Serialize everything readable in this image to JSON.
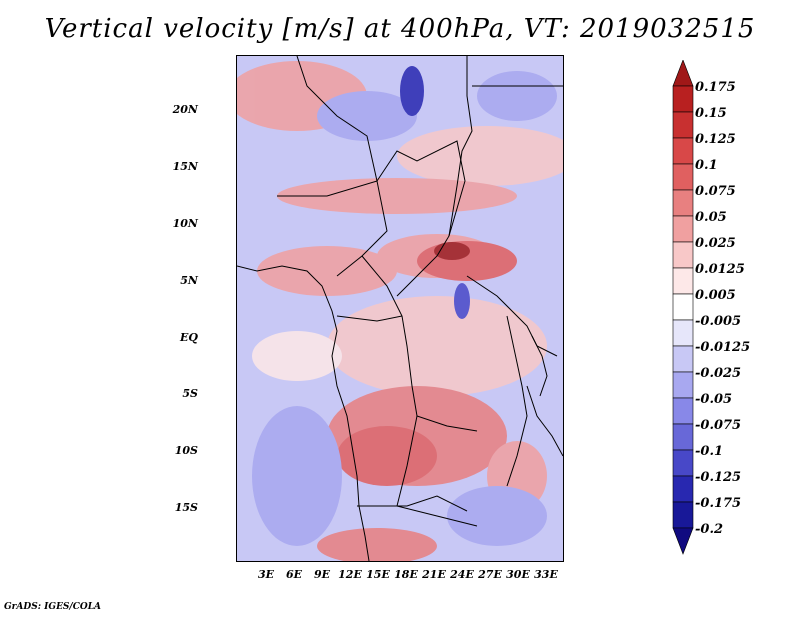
{
  "title": "Vertical velocity [m/s] at 400hPa, VT: 2019032515",
  "footer": "GrADS: IGES/COLA",
  "lat_ticks": [
    "20N",
    "15N",
    "10N",
    "5N",
    "EQ",
    "5S",
    "10S",
    "15S"
  ],
  "lon_ticks": [
    "3E",
    "6E",
    "9E",
    "12E",
    "15E",
    "18E",
    "21E",
    "24E",
    "27E",
    "30E",
    "33E"
  ],
  "colorbar": {
    "labels": [
      "0.175",
      "0.15",
      "0.125",
      "0.1",
      "0.075",
      "0.05",
      "0.025",
      "0.0125",
      "0.005",
      "-0.005",
      "-0.0125",
      "-0.025",
      "-0.05",
      "-0.075",
      "-0.1",
      "-0.125",
      "-0.175",
      "-0.2"
    ],
    "colors": [
      "#a01818",
      "#b82020",
      "#c83030",
      "#d84848",
      "#e06060",
      "#e88080",
      "#f0a0a0",
      "#f8c8c8",
      "#fde8e8",
      "#ffffff",
      "#e6e6fa",
      "#c8c8f5",
      "#a8a8f0",
      "#8888e8",
      "#6868d8",
      "#4848c8",
      "#2828b0",
      "#181898",
      "#100a80"
    ]
  }
}
